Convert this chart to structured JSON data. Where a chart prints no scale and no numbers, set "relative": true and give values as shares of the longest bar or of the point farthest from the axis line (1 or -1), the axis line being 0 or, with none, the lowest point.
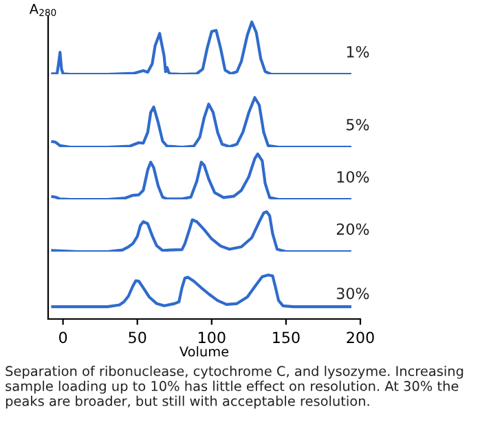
{
  "chart_data": [
    {
      "type": "line",
      "relative": true,
      "ylabel": "A$_{280}$",
      "xlim": [
        -10,
        200
      ],
      "tick_labels": false,
      "grid": false,
      "legend": false,
      "series": [
        {
          "name": "1%",
          "color": "#2f6bcc",
          "x": [
            -7,
            -4,
            -3,
            -2,
            -1,
            0,
            5,
            30,
            48,
            54,
            57,
            60,
            62,
            65,
            68,
            69,
            70,
            71,
            72,
            80,
            90,
            94,
            97,
            100,
            103,
            106,
            109,
            113,
            117,
            120,
            124,
            127,
            130,
            133,
            136,
            140,
            150,
            193
          ],
          "values": [
            0.01,
            0.01,
            0.2,
            0.42,
            0.1,
            0.01,
            0,
            0,
            0.02,
            0.07,
            0.04,
            0.2,
            0.55,
            0.78,
            0.35,
            0.05,
            0.13,
            0.04,
            0.01,
            0,
            0.01,
            0.1,
            0.5,
            0.82,
            0.84,
            0.5,
            0.08,
            0.01,
            0.05,
            0.25,
            0.75,
            1,
            0.8,
            0.3,
            0.05,
            0,
            0,
            0
          ]
        }
      ]
    },
    {
      "type": "line",
      "relative": true,
      "xlim": [
        -10,
        200
      ],
      "tick_labels": false,
      "grid": false,
      "legend": false,
      "series": [
        {
          "name": "5%",
          "color": "#2f6bcc",
          "x": [
            -7,
            -5,
            -2,
            5,
            30,
            45,
            51,
            54,
            57,
            59,
            61,
            64,
            67,
            70,
            80,
            88,
            92,
            95,
            98,
            101,
            104,
            107,
            112,
            117,
            121,
            125,
            129,
            132,
            135,
            138,
            145,
            193
          ],
          "values": [
            0.11,
            0.1,
            0.03,
            0,
            0,
            0.02,
            0.09,
            0.08,
            0.3,
            0.7,
            0.81,
            0.5,
            0.12,
            0.02,
            0,
            0.02,
            0.2,
            0.6,
            0.87,
            0.7,
            0.3,
            0.06,
            0.01,
            0.06,
            0.3,
            0.7,
            1,
            0.85,
            0.3,
            0.03,
            0,
            0
          ]
        }
      ]
    },
    {
      "type": "line",
      "relative": true,
      "xlim": [
        -10,
        200
      ],
      "tick_labels": false,
      "grid": false,
      "legend": false,
      "series": [
        {
          "name": "10%",
          "color": "#2f6bcc",
          "x": [
            -7,
            -5,
            -2,
            5,
            30,
            42,
            47,
            51,
            54,
            57,
            59,
            61,
            64,
            67,
            70,
            80,
            86,
            90,
            93,
            95,
            98,
            102,
            108,
            115,
            120,
            125,
            129,
            131,
            134,
            136,
            139,
            145,
            193
          ],
          "values": [
            0.06,
            0.05,
            0.01,
            0,
            0,
            0.03,
            0.09,
            0.1,
            0.2,
            0.65,
            0.82,
            0.7,
            0.3,
            0.05,
            0.01,
            0.01,
            0.05,
            0.4,
            0.82,
            0.75,
            0.45,
            0.15,
            0.04,
            0.07,
            0.2,
            0.5,
            0.9,
            1,
            0.85,
            0.35,
            0.04,
            0,
            0
          ]
        }
      ]
    },
    {
      "type": "line",
      "relative": true,
      "xlim": [
        -10,
        200
      ],
      "tick_labels": false,
      "grid": false,
      "legend": false,
      "series": [
        {
          "name": "20%",
          "color": "#2f6bcc",
          "x": [
            -7,
            10,
            30,
            40,
            44,
            47,
            50,
            52,
            54,
            57,
            60,
            63,
            67,
            72,
            80,
            82,
            85,
            87,
            90,
            95,
            100,
            106,
            112,
            120,
            127,
            132,
            135,
            137,
            139,
            141,
            144,
            150,
            193
          ],
          "values": [
            0.03,
            0,
            0,
            0.04,
            0.12,
            0.2,
            0.38,
            0.65,
            0.75,
            0.7,
            0.4,
            0.15,
            0.03,
            0.04,
            0.05,
            0.2,
            0.55,
            0.8,
            0.75,
            0.55,
            0.32,
            0.14,
            0.06,
            0.12,
            0.35,
            0.75,
            0.97,
            1,
            0.9,
            0.45,
            0.06,
            0,
            0
          ]
        }
      ]
    },
    {
      "type": "line",
      "relative": true,
      "xlim": [
        -10,
        200
      ],
      "xticks": [
        0,
        50,
        100,
        150,
        200
      ],
      "xlabel": "Volume",
      "tick_labels": "x",
      "grid": false,
      "legend": false,
      "annotations": [
        "Separation of ribonuclease, cytochrome C, and lysozyme. Increasing sample loading up to 10% has little effect on resolution. At 30% the peaks are broader, but still with acceptable resolution."
      ],
      "series": [
        {
          "name": "30%",
          "color": "#2f6bcc",
          "x": [
            -7,
            10,
            30,
            38,
            41,
            44,
            47,
            49,
            51,
            54,
            58,
            63,
            68,
            75,
            78,
            80,
            82,
            84,
            88,
            93,
            98,
            104,
            110,
            117,
            124,
            130,
            134,
            138,
            141,
            143,
            145,
            148,
            155,
            193
          ],
          "values": [
            0.28,
            0.28,
            0.28,
            0.32,
            0.39,
            0.52,
            0.75,
            0.87,
            0.86,
            0.71,
            0.5,
            0.35,
            0.3,
            0.35,
            0.39,
            0.71,
            0.93,
            0.95,
            0.86,
            0.71,
            0.57,
            0.42,
            0.33,
            0.35,
            0.5,
            0.78,
            0.96,
            1,
            0.98,
            0.71,
            0.42,
            0.3,
            0.28,
            0.28
          ]
        }
      ]
    }
  ]
}
